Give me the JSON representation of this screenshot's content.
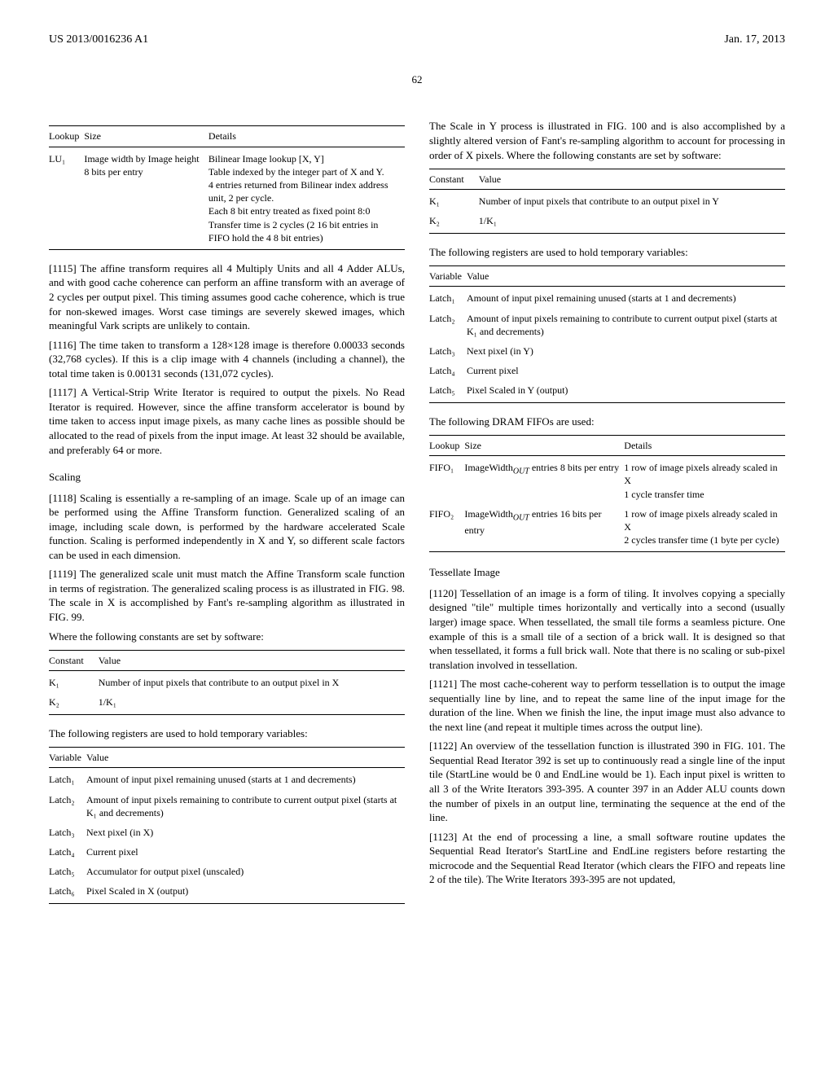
{
  "header": {
    "left": "US 2013/0016236 A1",
    "right": "Jan. 17, 2013"
  },
  "page_number": "62",
  "left": {
    "table_lookup": {
      "h1": "Lookup",
      "h2": "Size",
      "h3": "Details",
      "r1c1": "LU₁",
      "r1c2": "Image width by Image height 8 bits per entry",
      "r1c3": "Bilinear Image lookup [X, Y]\nTable indexed by the integer part of X and Y.\n4 entries returned from Bilinear index address unit, 2 per cycle.\nEach 8 bit entry treated as fixed point 8:0\nTransfer time is 2 cycles (2 16 bit entries in FIFO hold the 4 8 bit entries)"
    },
    "p1115": "[1115]   The affine transform requires all 4 Multiply Units and all 4 Adder ALUs, and with good cache coherence can perform an affine transform with an average of 2 cycles per output pixel. This timing assumes good cache coherence, which is true for non-skewed images. Worst case timings are severely skewed images, which meaningful Vark scripts are unlikely to contain.",
    "p1116": "[1116]   The time taken to transform a 128×128 image is therefore 0.00033 seconds (32,768 cycles). If this is a clip image with 4 channels (including a channel), the total time taken is 0.00131 seconds (131,072 cycles).",
    "p1117": "[1117]   A Vertical-Strip Write Iterator is required to output the pixels. No Read Iterator is required. However, since the affine transform accelerator is bound by time taken to access input image pixels, as many cache lines as possible should be allocated to the read of pixels from the input image. At least 32 should be available, and preferably 64 or more.",
    "scaling_head": "Scaling",
    "p1118": "[1118]   Scaling is essentially a re-sampling of an image. Scale up of an image can be performed using the Affine Transform function. Generalized scaling of an image, including scale down, is performed by the hardware accelerated Scale function. Scaling is performed independently in X and Y, so different scale factors can be used in each dimension.",
    "p1119": "[1119]   The generalized scale unit must match the Affine Transform scale function in terms of registration. The generalized scaling process is as illustrated in FIG. 98. The scale in X is accomplished by Fant's re-sampling algorithm as illustrated in FIG. 99.",
    "const_intro": "Where the following constants are set by software:",
    "table_const": {
      "h1": "Constant",
      "h2": "Value",
      "r1c1": "K₁",
      "r1c2": "Number of input pixels that contribute to an output pixel in X",
      "r2c1": "K₂",
      "r2c2": "1/K₁"
    },
    "reg_intro": "The following registers are used to hold temporary variables:",
    "table_var": {
      "h1": "Variable",
      "h2": "Value",
      "r1c1": "Latch₁",
      "r1c2": "Amount of input pixel remaining unused (starts at 1 and decrements)",
      "r2c1": "Latch₂",
      "r2c2": "Amount of input pixels remaining to contribute to current output pixel (starts at K₁ and decrements)",
      "r3c1": "Latch₃",
      "r3c2": "Next pixel (in X)",
      "r4c1": "Latch₄",
      "r4c2": "Current pixel",
      "r5c1": "Latch₅",
      "r5c2": "Accumulator for output pixel (unscaled)",
      "r6c1": "Latch₆",
      "r6c2": "Pixel Scaled in X (output)"
    }
  },
  "right": {
    "p_scale_y": "The Scale in Y process is illustrated in FIG. 100 and is also accomplished by a slightly altered version of Fant's re-sampling algorithm to account for processing in order of X pixels. Where the following constants are set by software:",
    "table_const_y": {
      "h1": "Constant",
      "h2": "Value",
      "r1c1": "K₁",
      "r1c2": "Number of input pixels that contribute to an output pixel in Y",
      "r2c1": "K₂",
      "r2c2": "1/K₁"
    },
    "reg_intro_y": "The following registers are used to hold temporary variables:",
    "table_var_y": {
      "h1": "Variable",
      "h2": "Value",
      "r1c1": "Latch₁",
      "r1c2": "Amount of input pixel remaining unused (starts at 1 and decrements)",
      "r2c1": "Latch₂",
      "r2c2": "Amount of input pixels remaining to contribute to current output pixel (starts at K₁ and decrements)",
      "r3c1": "Latch₃",
      "r3c2": "Next pixel (in Y)",
      "r4c1": "Latch₄",
      "r4c2": "Current pixel",
      "r5c1": "Latch₅",
      "r5c2": "Pixel Scaled in Y (output)"
    },
    "fifo_intro": "The following DRAM FIFOs are used:",
    "table_fifo": {
      "h1": "Lookup",
      "h2": "Size",
      "h3": "Details",
      "r1c1": "FIFO₁",
      "r1c2": "ImageWidthOUT entries 8 bits per entry",
      "r1c3": "1 row of image pixels already scaled in X\n1 cycle transfer time",
      "r2c1": "FIFO₂",
      "r2c2": "ImageWidthOUT entries 16 bits per entry",
      "r2c3": "1 row of image pixels already scaled in X\n2 cycles transfer time (1 byte per cycle)"
    },
    "tess_head": "Tessellate Image",
    "p1120": "[1120]   Tessellation of an image is a form of tiling. It involves copying a specially designed \"tile\" multiple times horizontally and vertically into a second (usually larger) image space. When tessellated, the small tile forms a seamless picture. One example of this is a small tile of a section of a brick wall. It is designed so that when tessellated, it forms a full brick wall. Note that there is no scaling or sub-pixel translation involved in tessellation.",
    "p1121": "[1121]   The most cache-coherent way to perform tessellation is to output the image sequentially line by line, and to repeat the same line of the input image for the duration of the line. When we finish the line, the input image must also advance to the next line (and repeat it multiple times across the output line).",
    "p1122": "[1122]   An overview of the tessellation function is illustrated 390 in FIG. 101. The Sequential Read Iterator 392 is set up to continuously read a single line of the input tile (StartLine would be 0 and EndLine would be 1). Each input pixel is written to all 3 of the Write Iterators 393-395. A counter 397 in an Adder ALU counts down the number of pixels in an output line, terminating the sequence at the end of the line.",
    "p1123": "[1123]   At the end of processing a line, a small software routine updates the Sequential Read Iterator's StartLine and EndLine registers before restarting the microcode and the Sequential Read Iterator (which clears the FIFO and repeats line 2 of the tile). The Write Iterators 393-395 are not updated,"
  }
}
